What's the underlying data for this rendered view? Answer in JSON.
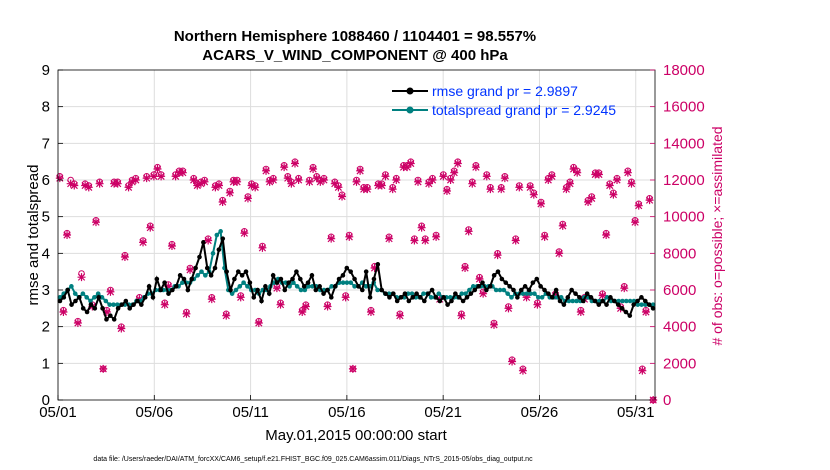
{
  "chart_data": {
    "type": "line",
    "title_line1": "Northern Hemisphere 1088460 / 1104401 = 98.557%",
    "title_line2": "ACARS_V_WIND_COMPONENT @ 400 hPa",
    "xlabel": "May.01,2015 00:00:00 start",
    "ylabel_left": "rmse and totalspread",
    "ylabel_right": "# of obs: o=possible; ×=assimilated",
    "footer": "data file: /Users/raeder/DAI/ATM_forcXX/CAM6_setup/f.e21.FHIST_BGC.f09_025.CAM6assim.011/Diags_NTrS_2015-05/obs_diag_output.nc",
    "x_tick_labels": [
      "05/01",
      "05/06",
      "05/11",
      "05/16",
      "05/21",
      "05/26",
      "05/31"
    ],
    "x_tick_values": [
      0,
      5,
      10,
      15,
      20,
      25,
      30
    ],
    "xlim": [
      0,
      31
    ],
    "ylim_left": [
      0,
      9
    ],
    "y_ticks_left": [
      "0",
      "1",
      "2",
      "3",
      "4",
      "5",
      "6",
      "7",
      "8",
      "9"
    ],
    "ylim_right": [
      0,
      18000
    ],
    "y_ticks_right": [
      "0",
      "2000",
      "4000",
      "6000",
      "8000",
      "10000",
      "12000",
      "14000",
      "16000",
      "18000"
    ],
    "colors": {
      "rmse": "#000000",
      "spread": "#008080",
      "obs": "#cc0066",
      "legend_text": "#0033ff"
    },
    "series": [
      {
        "name": "rmse grand pr = 2.9897",
        "values": [
          2.7,
          2.8,
          3.0,
          2.6,
          2.7,
          2.8,
          2.5,
          2.4,
          2.6,
          2.5,
          2.8,
          2.5,
          2.2,
          2.3,
          2.2,
          2.5,
          2.6,
          2.7,
          2.5,
          2.6,
          2.7,
          2.6,
          2.8,
          3.1,
          2.8,
          3.3,
          3.0,
          3.2,
          2.9,
          3.0,
          3.1,
          3.4,
          3.3,
          3.0,
          3.3,
          3.6,
          3.9,
          4.3,
          3.6,
          3.4,
          3.6,
          4.1,
          4.4,
          3.5,
          3.0,
          3.3,
          3.5,
          3.4,
          3.5,
          3.2,
          2.8,
          3.0,
          2.7,
          3.1,
          2.9,
          3.4,
          3.2,
          3.3,
          3.0,
          3.2,
          3.3,
          3.5,
          3.3,
          3.1,
          3.2,
          3.4,
          3.0,
          3.1,
          2.9,
          3.0,
          2.8,
          3.1,
          3.3,
          3.4,
          3.6,
          3.5,
          3.3,
          3.1,
          3.0,
          3.5,
          2.8,
          3.3,
          3.7,
          3.0,
          2.9,
          2.8,
          2.9,
          2.7,
          2.8,
          2.9,
          2.7,
          2.8,
          2.9,
          2.8,
          2.7,
          2.9,
          3.0,
          2.8,
          2.7,
          2.8,
          2.6,
          2.7,
          2.9,
          2.8,
          2.7,
          2.8,
          2.9,
          3.0,
          3.1,
          3.2,
          3.0,
          3.1,
          3.4,
          3.5,
          3.3,
          3.2,
          3.1,
          3.0,
          2.8,
          3.0,
          3.1,
          3.0,
          3.2,
          3.3,
          3.1,
          3.0,
          2.9,
          2.8,
          3.0,
          2.7,
          2.6,
          2.8,
          3.0,
          2.9,
          2.8,
          2.7,
          2.9,
          2.8,
          2.7,
          2.6,
          2.7,
          2.6,
          2.8,
          2.7,
          2.6,
          2.5,
          2.4,
          2.3,
          2.6,
          2.7,
          2.8,
          2.7,
          2.6,
          2.5
        ],
        "color": "#000000"
      },
      {
        "name": "totalspread grand pr = 2.9245",
        "values": [
          2.8,
          2.9,
          3.0,
          3.1,
          2.9,
          2.8,
          2.9,
          2.8,
          2.7,
          2.8,
          2.9,
          2.8,
          2.7,
          2.6,
          2.6,
          2.6,
          2.6,
          2.6,
          2.6,
          2.6,
          2.7,
          2.7,
          2.8,
          2.9,
          2.9,
          3.0,
          3.0,
          3.0,
          3.0,
          3.0,
          3.1,
          3.1,
          3.2,
          3.2,
          3.2,
          3.3,
          3.4,
          3.5,
          3.4,
          3.5,
          4.0,
          4.5,
          4.6,
          3.6,
          3.0,
          2.9,
          3.0,
          3.1,
          3.2,
          3.1,
          3.0,
          3.0,
          2.9,
          3.0,
          3.0,
          3.1,
          3.2,
          3.3,
          3.2,
          3.2,
          3.1,
          3.2,
          3.1,
          3.0,
          3.0,
          3.1,
          3.1,
          3.1,
          3.0,
          3.0,
          3.0,
          3.1,
          3.1,
          3.2,
          3.2,
          3.2,
          3.2,
          3.1,
          3.1,
          3.2,
          3.1,
          3.1,
          3.2,
          3.0,
          3.0,
          2.9,
          2.9,
          2.9,
          2.8,
          2.8,
          2.8,
          2.9,
          2.9,
          2.8,
          2.8,
          2.9,
          2.9,
          2.8,
          2.8,
          2.9,
          2.8,
          2.8,
          2.8,
          2.8,
          2.8,
          2.9,
          2.9,
          3.0,
          3.1,
          3.1,
          3.1,
          3.1,
          3.1,
          3.1,
          3.0,
          3.0,
          3.0,
          2.9,
          2.8,
          2.9,
          2.9,
          2.9,
          2.9,
          2.9,
          2.9,
          2.8,
          2.8,
          2.9,
          2.8,
          2.8,
          2.8,
          2.8,
          2.7,
          2.7,
          2.7,
          2.7,
          2.7,
          2.8,
          2.8,
          2.7,
          2.7,
          2.7,
          2.7,
          2.8,
          2.7,
          2.7,
          2.7,
          2.7,
          2.7,
          2.7,
          2.7,
          2.6,
          2.6,
          2.6,
          2.6,
          2.6
        ],
        "color": "#008080"
      }
    ],
    "obs_possible": [
      12200,
      4900,
      9100,
      12000,
      11800,
      4300,
      6900,
      11800,
      11700,
      5200,
      9800,
      11900,
      1700,
      4900,
      6000,
      11900,
      11900,
      4000,
      7900,
      11700,
      12000,
      12100,
      5600,
      8700,
      12200,
      9500,
      12300,
      12700,
      12300,
      5300,
      6300,
      8500,
      12300,
      12500,
      12500,
      4800,
      7200,
      12100,
      11800,
      11900,
      12000,
      8800,
      5600,
      11700,
      11800,
      10900,
      4700,
      11400,
      12000,
      12000,
      5700,
      9200,
      11100,
      11800,
      11700,
      4300,
      8400,
      12600,
      12000,
      12100,
      6200,
      5300,
      12800,
      12200,
      11900,
      13000,
      12100,
      4900,
      5200,
      12000,
      12700,
      12200,
      12000,
      12100,
      5200,
      8900,
      11900,
      11700,
      11200,
      5700,
      9000,
      1700,
      12000,
      12600,
      11600,
      11600,
      4900,
      7300,
      11800,
      11800,
      12300,
      8900,
      11600,
      12100,
      4700,
      12800,
      12800,
      13000,
      8800,
      12000,
      9500,
      8800,
      11900,
      12100,
      9000,
      5600,
      12300,
      11500,
      12100,
      12500,
      13000,
      4700,
      7300,
      9300,
      11900,
      12800,
      6700,
      5900,
      12300,
      11600,
      4200,
      8000,
      11600,
      12200,
      5100,
      2200,
      8800,
      11700,
      1700,
      5700,
      11700,
      11300,
      5300,
      10800,
      9000,
      12100,
      12300,
      5800,
      8100,
      9600,
      11600,
      11900,
      12700,
      12500,
      4900,
      5600,
      10900,
      11100,
      12400,
      12400,
      5800,
      9100,
      11800,
      11300,
      12100,
      5100,
      6200,
      12500,
      11900,
      9800,
      10700,
      1700,
      4900,
      11000,
      0
    ],
    "obs_assimilated": [
      12100,
      4800,
      9000,
      11800,
      11700,
      4200,
      6700,
      11700,
      11600,
      5100,
      9700,
      11800,
      1700,
      4800,
      5900,
      11800,
      11800,
      3900,
      7800,
      11600,
      11900,
      12000,
      5500,
      8600,
      12100,
      9400,
      12200,
      12600,
      12200,
      5200,
      6200,
      8400,
      12200,
      12400,
      12400,
      4700,
      7100,
      12000,
      11700,
      11800,
      11900,
      8700,
      5500,
      11600,
      11700,
      10800,
      4600,
      11300,
      11900,
      11900,
      5600,
      9100,
      11000,
      11700,
      11600,
      4200,
      8300,
      12500,
      11900,
      12000,
      6100,
      5200,
      12700,
      12100,
      11800,
      12900,
      12000,
      4800,
      5100,
      11900,
      12600,
      12100,
      11900,
      12000,
      5100,
      8800,
      11800,
      11600,
      11100,
      5600,
      8900,
      1700,
      11900,
      12500,
      11500,
      11500,
      4800,
      7200,
      11700,
      11700,
      12200,
      8800,
      11500,
      12000,
      4600,
      12700,
      12700,
      12900,
      8700,
      11900,
      9400,
      8700,
      11800,
      12000,
      8900,
      5500,
      12200,
      11400,
      12000,
      12400,
      12900,
      4600,
      7200,
      9200,
      11800,
      12700,
      6600,
      5800,
      12200,
      11500,
      4100,
      7900,
      11500,
      12100,
      5000,
      2100,
      8700,
      11600,
      1600,
      5600,
      11600,
      11200,
      5200,
      10700,
      8900,
      12000,
      12200,
      5700,
      8000,
      9500,
      11500,
      11800,
      12600,
      12400,
      4800,
      5500,
      10800,
      11000,
      12300,
      12300,
      5700,
      9000,
      11700,
      11200,
      12000,
      5000,
      6100,
      12400,
      11800,
      9700,
      10600,
      1600,
      4800,
      10900,
      0
    ]
  }
}
